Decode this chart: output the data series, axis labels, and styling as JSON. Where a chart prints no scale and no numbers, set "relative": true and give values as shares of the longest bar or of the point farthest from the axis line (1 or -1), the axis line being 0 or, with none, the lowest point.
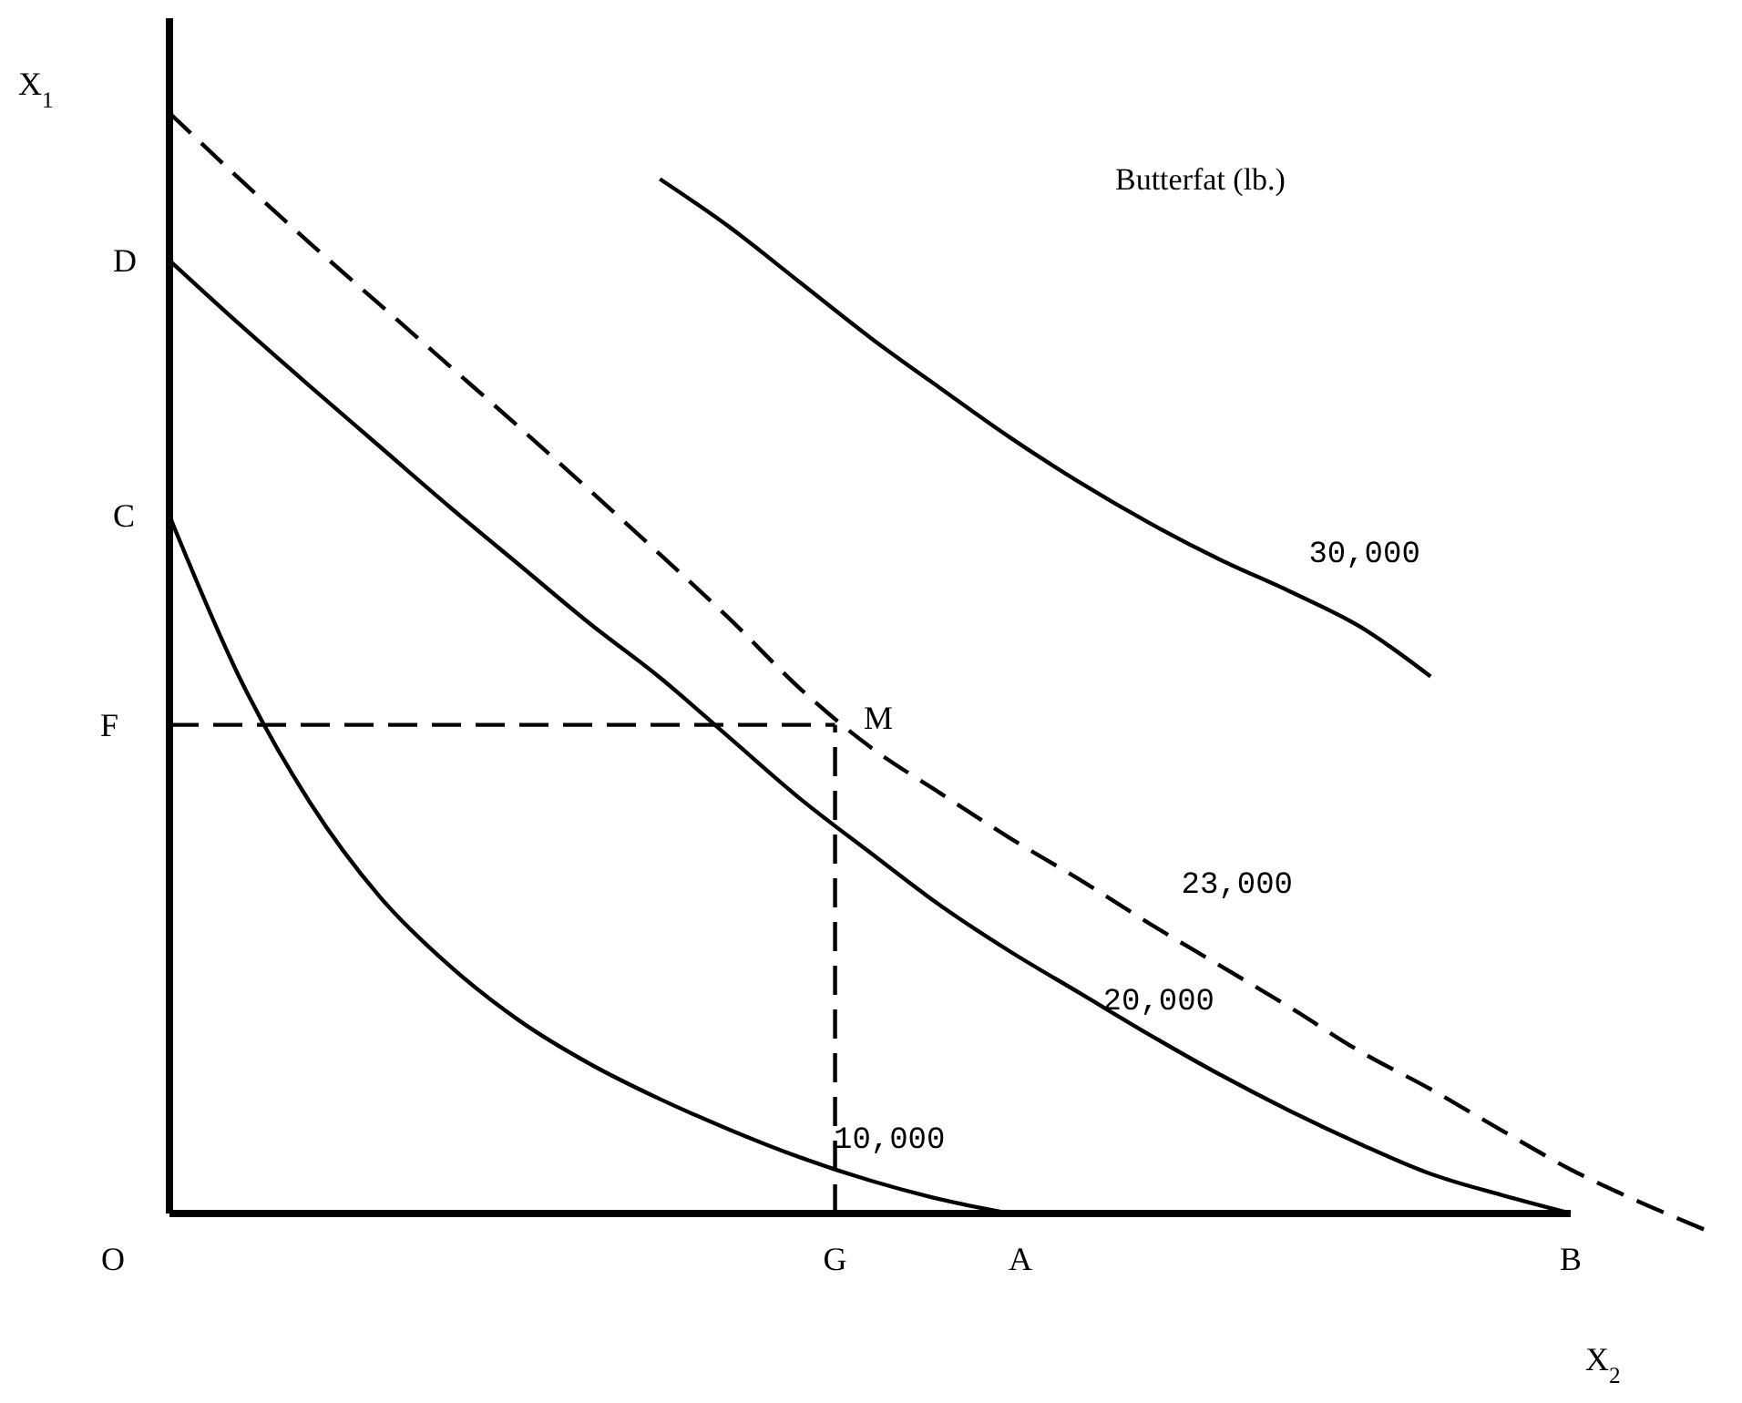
{
  "chart_data": {
    "type": "line",
    "relative": true,
    "xlabel": "X$_{2}$",
    "ylabel": "X$_{1}$",
    "legend_title": "Butterfat (lb.)",
    "categories": [
      null,
      null,
      null,
      null,
      null,
      null,
      null,
      null,
      null,
      null,
      null,
      null,
      null,
      null,
      null,
      null,
      null,
      null,
      null,
      null,
      null,
      null,
      null
    ],
    "series": [
      {
        "name": "10,000",
        "color": "#000000",
        "line_style": "solid",
        "values": [
          0.634,
          0.487,
          0.374,
          0.288,
          0.225,
          0.175,
          0.136,
          0.104,
          0.076,
          0.051,
          0.03,
          0.013,
          0,
          null,
          null,
          null,
          null,
          null,
          null,
          null,
          null,
          null,
          null
        ]
      },
      {
        "name": "20,000",
        "color": "#000000",
        "line_style": "solid",
        "values": [
          0.866,
          0.808,
          0.752,
          0.697,
          0.642,
          0.589,
          0.536,
          0.487,
          0.432,
          0.377,
          0.328,
          0.28,
          0.238,
          0.2,
          0.162,
          0.126,
          0.093,
          0.063,
          0.036,
          0.017,
          0,
          null,
          null
        ]
      },
      {
        "name": "23,000",
        "color": "#000000",
        "line_style": "dashed",
        "values": [
          1,
          0.94,
          0.882,
          0.826,
          0.77,
          0.714,
          0.657,
          0.599,
          0.54,
          0.477,
          0.424,
          0.382,
          0.341,
          0.303,
          0.263,
          0.225,
          0.187,
          0.147,
          0.113,
          0.076,
          0.04,
          0.01,
          -0.017
        ]
      },
      {
        "name": "30,000",
        "color": "#000000",
        "line_style": "solid",
        "values": [
          null,
          null,
          null,
          null,
          null,
          null,
          null,
          0.94,
          0.896,
          0.846,
          0.796,
          0.75,
          0.705,
          0.664,
          0.627,
          0.594,
          0.565,
          0.533,
          0.488,
          null,
          null,
          null,
          null
        ]
      }
    ],
    "ref_lines": [
      {
        "axis": "y",
        "value": 0.444,
        "label": "F",
        "line_style": "dashed",
        "color": "#000000"
      }
    ],
    "annotations": [
      "O",
      "A",
      "B",
      "C",
      "D",
      "M",
      "G"
    ]
  }
}
